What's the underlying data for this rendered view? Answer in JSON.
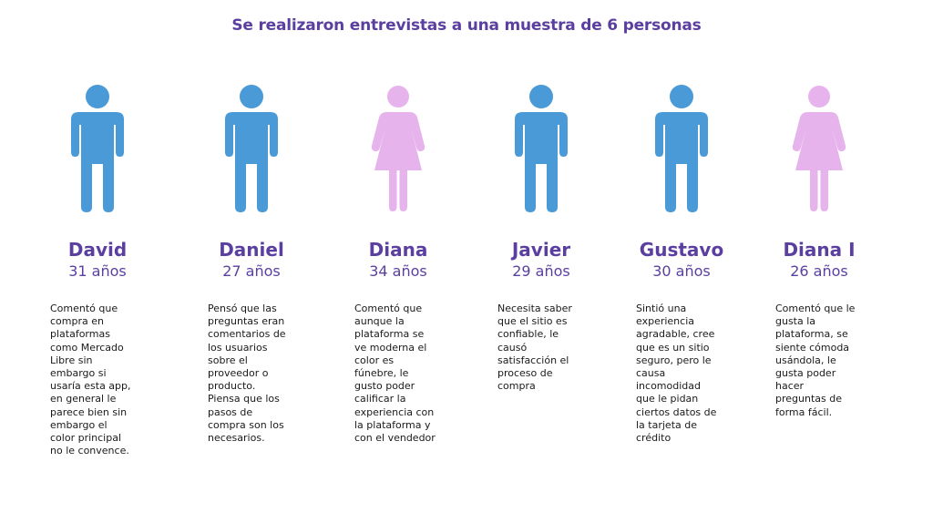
{
  "title": "Se realizaron entrevistas a una muestra de 6 personas",
  "colors": {
    "title": "#5b3fa0",
    "male_figure": "#4a9ad8",
    "female_figure": "#e6b3ec",
    "text": "#1a1a1a"
  },
  "people": [
    {
      "name": "David",
      "age": "31 años",
      "icon": "male-person-icon",
      "comment": "Comentó que\ncompra en\nplataformas\ncomo Mercado\nLibre sin\nembargo si\nusaría esta app,\nen general le\nparece bien sin\nembargo el\ncolor principal\nno le convence."
    },
    {
      "name": "Daniel",
      "age": "27 años",
      "icon": "male-person-icon",
      "comment": "Pensó que las\npreguntas eran\ncomentarios de\nlos usuarios\nsobre el\nproveedor o\nproducto.\nPiensa que los\npasos de\ncompra son los\nnecesarios."
    },
    {
      "name": "Diana",
      "age": "34 años",
      "icon": "female-person-icon",
      "comment": "Comentó que\naunque la\nplataforma se\nve moderna el\ncolor es\nfúnebre, le\ngusto poder\ncalificar la\nexperiencia con\nla plataforma y\ncon el vendedor"
    },
    {
      "name": "Javier",
      "age": "29 años",
      "icon": "male-person-icon",
      "comment": "Necesita saber\nque el sitio es\nconfiable, le\ncausó\nsatisfacción el\nproceso de\ncompra"
    },
    {
      "name": "Gustavo",
      "age": "30 años",
      "icon": "male-person-icon",
      "comment": "Sintió una\nexperiencia\nagradable, cree\nque es un sitio\nseguro, pero le\ncausa\nincomodidad\nque le pidan\nciertos datos de\nla tarjeta de\ncrédito"
    },
    {
      "name": "Diana I",
      "age": "26 años",
      "icon": "female-person-icon",
      "comment": "Comentó que le\ngusta la\nplataforma, se\nsiente cómoda\nusándola, le\ngusta poder\nhacer\npreguntas de\nforma fácil."
    }
  ]
}
